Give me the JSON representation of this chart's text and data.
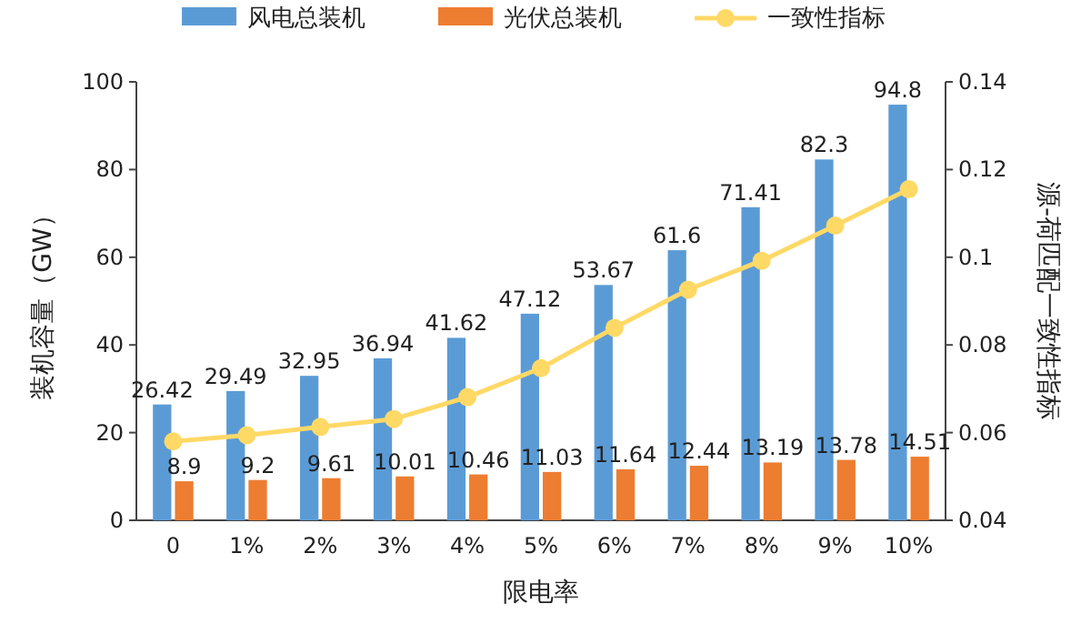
{
  "chart_data": {
    "type": "bar",
    "xlabel": "限电率",
    "ylabel": "装机容量（GW）",
    "y2label": "源-荷匹配一致性指标",
    "categories": [
      "0",
      "1%",
      "2%",
      "3%",
      "4%",
      "5%",
      "6%",
      "7%",
      "8%",
      "9%",
      "10%"
    ],
    "series": [
      {
        "name": "风电总装机",
        "color": "#5b9bd5",
        "values": [
          26.42,
          29.49,
          32.95,
          36.94,
          41.62,
          47.12,
          53.67,
          61.6,
          71.41,
          82.3,
          94.8
        ],
        "value_labels": [
          "26.42",
          "29.49",
          "32.95",
          "36.94",
          "41.62",
          "47.12",
          "53.67",
          "61.6",
          "71.41",
          "82.3",
          "94.8"
        ]
      },
      {
        "name": "光伏总装机",
        "color": "#ed7d31",
        "values": [
          8.9,
          9.2,
          9.61,
          10.01,
          10.46,
          11.03,
          11.64,
          12.44,
          13.19,
          13.78,
          14.51
        ],
        "value_labels": [
          "8.9",
          "9.2",
          "9.61",
          "10.01",
          "10.46",
          "11.03",
          "11.64",
          "12.44",
          "13.19",
          "13.78",
          "14.51"
        ]
      },
      {
        "name": "一致性指标",
        "type": "line",
        "axis": "y2",
        "color": "#ffd966",
        "marker": "circle",
        "values": [
          0.058,
          0.0594,
          0.0613,
          0.0631,
          0.0681,
          0.0747,
          0.0839,
          0.0926,
          0.0992,
          0.1072,
          0.1155
        ]
      }
    ],
    "ylim": [
      0,
      100
    ],
    "yticks": [
      0,
      20,
      40,
      60,
      80,
      100
    ],
    "y2lim": [
      0.04,
      0.14
    ],
    "y2ticks": [
      0.04,
      0.06,
      0.08,
      0.1,
      0.12,
      0.14
    ],
    "legend": "top"
  }
}
